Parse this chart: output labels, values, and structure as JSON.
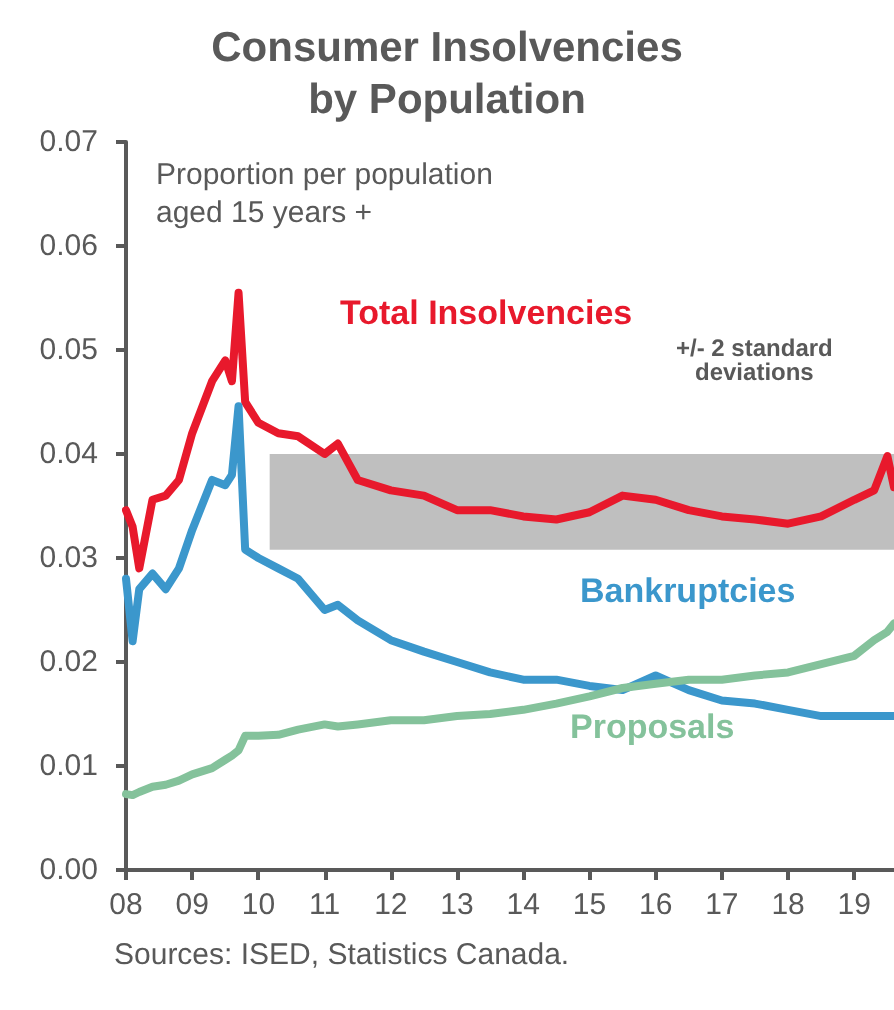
{
  "chart_data": {
    "type": "line",
    "title": "Consumer Insolvencies\nby Population",
    "x": [
      2008,
      2008.1,
      2008.2,
      2008.4,
      2008.6,
      2008.8,
      2009,
      2009.3,
      2009.5,
      2009.6,
      2009.7,
      2009.8,
      2010,
      2010.3,
      2010.6,
      2011,
      2011.2,
      2011.5,
      2012,
      2012.5,
      2013,
      2013.5,
      2014,
      2014.5,
      2015,
      2015.5,
      2016,
      2016.5,
      2017,
      2017.5,
      2018,
      2018.5,
      2019,
      2019.3,
      2019.5,
      2019.6
    ],
    "series": [
      {
        "name": "Total Insolvencies",
        "color": "#e8192c",
        "values": [
          0.0346,
          0.033,
          0.029,
          0.0356,
          0.036,
          0.0375,
          0.042,
          0.047,
          0.049,
          0.047,
          0.0555,
          0.045,
          0.043,
          0.042,
          0.0417,
          0.04,
          0.041,
          0.0375,
          0.0365,
          0.036,
          0.0346,
          0.0346,
          0.034,
          0.0337,
          0.0344,
          0.036,
          0.0356,
          0.0346,
          0.034,
          0.0337,
          0.0333,
          0.034,
          0.0356,
          0.0365,
          0.0398,
          0.0368
        ]
      },
      {
        "name": "Bankruptcies",
        "color": "#3b97cc",
        "values": [
          0.028,
          0.022,
          0.027,
          0.0285,
          0.027,
          0.029,
          0.0327,
          0.0375,
          0.037,
          0.038,
          0.0446,
          0.0308,
          0.03,
          0.029,
          0.028,
          0.025,
          0.0255,
          0.024,
          0.0221,
          0.021,
          0.02,
          0.019,
          0.0183,
          0.0183,
          0.0177,
          0.0173,
          0.0187,
          0.0173,
          0.0163,
          0.016,
          0.0154,
          0.0148,
          0.0148,
          0.0148,
          0.0148,
          0.0148
        ]
      },
      {
        "name": "Proposals",
        "color": "#84c29b",
        "values": [
          0.0073,
          0.0072,
          0.0075,
          0.008,
          0.0082,
          0.0086,
          0.0092,
          0.0098,
          0.0106,
          0.011,
          0.0115,
          0.0129,
          0.0129,
          0.013,
          0.0135,
          0.014,
          0.0138,
          0.014,
          0.0144,
          0.0144,
          0.0148,
          0.015,
          0.0154,
          0.016,
          0.0167,
          0.0175,
          0.0179,
          0.0183,
          0.0183,
          0.0187,
          0.019,
          0.0198,
          0.0206,
          0.0221,
          0.0229,
          0.0237
        ]
      }
    ],
    "xlim": [
      2008,
      2019.6
    ],
    "xticks": [
      {
        "value": 2008,
        "label": "08"
      },
      {
        "value": 2009,
        "label": "09"
      },
      {
        "value": 2010,
        "label": "10"
      },
      {
        "value": 2011,
        "label": "11"
      },
      {
        "value": 2012,
        "label": "12"
      },
      {
        "value": 2013,
        "label": "13"
      },
      {
        "value": 2014,
        "label": "14"
      },
      {
        "value": 2015,
        "label": "15"
      },
      {
        "value": 2016,
        "label": "16"
      },
      {
        "value": 2017,
        "label": "17"
      },
      {
        "value": 2018,
        "label": "18"
      },
      {
        "value": 2019,
        "label": "19"
      }
    ],
    "ylim": [
      0,
      0.07
    ],
    "yticks": [
      {
        "value": 0,
        "label": "0.00"
      },
      {
        "value": 0.01,
        "label": "0.01"
      },
      {
        "value": 0.02,
        "label": "0.02"
      },
      {
        "value": 0.03,
        "label": "0.03"
      },
      {
        "value": 0.04,
        "label": "0.04"
      },
      {
        "value": 0.05,
        "label": "0.05"
      },
      {
        "value": 0.06,
        "label": "0.06"
      },
      {
        "value": 0.07,
        "label": "0.07"
      }
    ],
    "bands": [
      {
        "axis": "y",
        "from": 0.0308,
        "to": 0.04,
        "label": "+/- 2 standard\ndeviations",
        "color": "#bfbfbf"
      }
    ],
    "annotations": [
      "Proportion per population\naged 15 years +",
      "Sources: ISED, Statistics Canada."
    ],
    "grid": false,
    "legend": false,
    "marker": "none",
    "line_style": "solid"
  }
}
